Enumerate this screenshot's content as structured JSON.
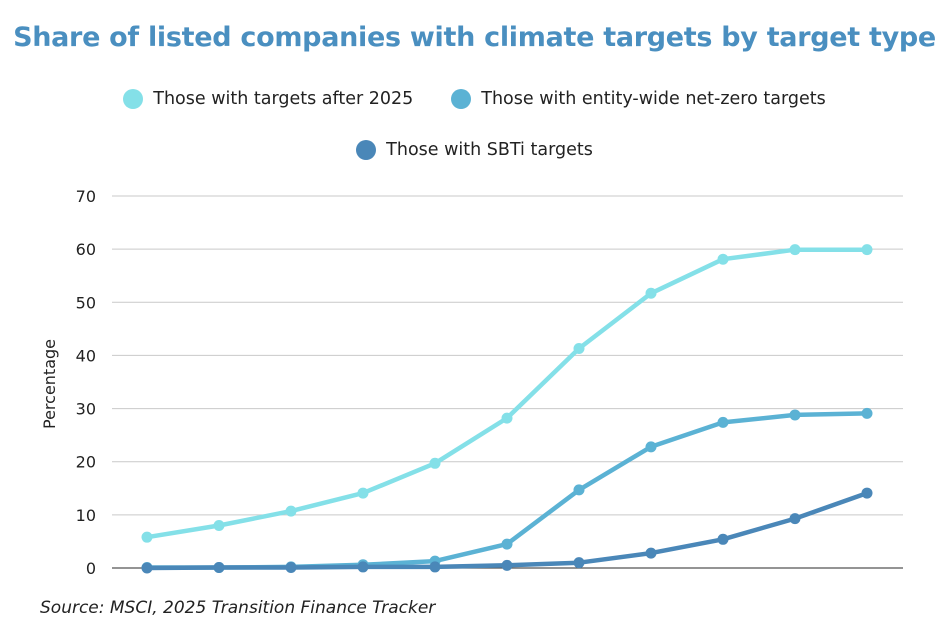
{
  "colors": {
    "title": "#4a8fc0",
    "series": [
      "#84e0e8",
      "#5bb2d4",
      "#4a87b8"
    ],
    "grid": "#c9c9c9"
  },
  "chart_data": {
    "type": "line",
    "title": "Share of listed companies with climate targets by target type",
    "xlabel": "",
    "ylabel": "Percentage",
    "ylim": [
      0,
      70
    ],
    "yticks": [
      0,
      10,
      20,
      30,
      40,
      50,
      60,
      70
    ],
    "grid": true,
    "legend_position": "top",
    "x": [
      1,
      2,
      3,
      4,
      5,
      6,
      7,
      8,
      9,
      10,
      11
    ],
    "series": [
      {
        "name": "Those with targets after 2025",
        "values": [
          5.8,
          8.0,
          10.7,
          14.1,
          19.7,
          28.2,
          41.3,
          51.7,
          58.1,
          59.9,
          59.9
        ]
      },
      {
        "name": "Those with entity-wide net-zero targets",
        "values": [
          0.1,
          0.1,
          0.2,
          0.6,
          1.3,
          4.5,
          14.7,
          22.8,
          27.4,
          28.8,
          29.1
        ]
      },
      {
        "name": "Those with SBTi targets",
        "values": [
          0.0,
          0.1,
          0.1,
          0.2,
          0.2,
          0.5,
          1.0,
          2.8,
          5.4,
          9.3,
          14.1
        ]
      }
    ]
  },
  "source": "Source: MSCI, 2025 Transition Finance Tracker"
}
